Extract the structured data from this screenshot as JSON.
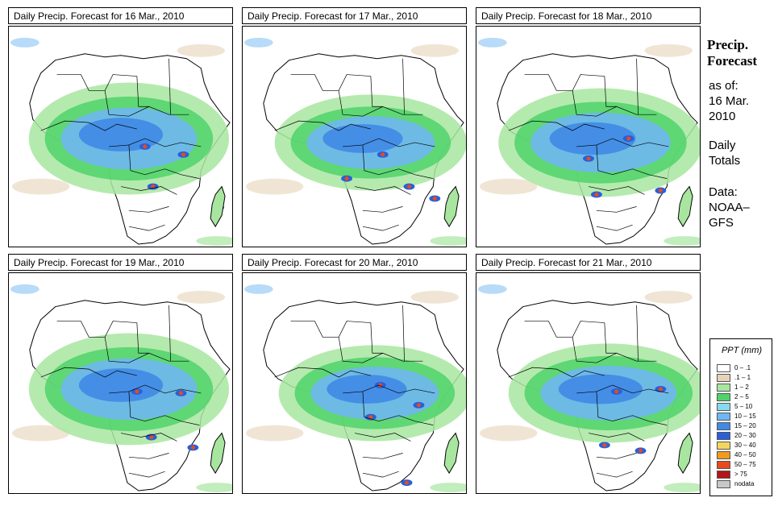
{
  "panels": [
    {
      "title": "Daily Precip. Forecast for  16 Mar., 2010"
    },
    {
      "title": "Daily Precip. Forecast for  17 Mar., 2010"
    },
    {
      "title": "Daily Precip. Forecast for  18 Mar., 2010"
    },
    {
      "title": "Daily Precip. Forecast for  19 Mar., 2010"
    },
    {
      "title": "Daily Precip. Forecast for  20 Mar., 2010"
    },
    {
      "title": "Daily Precip. Forecast for  21 Mar., 2010"
    }
  ],
  "sidebar": {
    "title_line1": "Precip.",
    "title_line2": "Forecast",
    "asof_line1": "as of:",
    "asof_line2": "16 Mar.",
    "asof_line3": "2010",
    "totals_line1": "Daily",
    "totals_line2": "Totals",
    "data_line1": "Data:",
    "data_line2": "NOAA–",
    "data_line3": "GFS"
  },
  "legend": {
    "title": "PPT (mm)",
    "items": [
      {
        "label": "0 – .1",
        "color": "#ffffff"
      },
      {
        "label": ".1 – 1",
        "color": "#e6d3b8"
      },
      {
        "label": "1 – 2",
        "color": "#a8e6a0"
      },
      {
        "label": "2 – 5",
        "color": "#4fd36a"
      },
      {
        "label": "5 – 10",
        "color": "#86d9ef"
      },
      {
        "label": "10 – 15",
        "color": "#6fb7f2"
      },
      {
        "label": "15 – 20",
        "color": "#3f8ae6"
      },
      {
        "label": "20 – 30",
        "color": "#2a5fd8"
      },
      {
        "label": "30 – 40",
        "color": "#f3d660"
      },
      {
        "label": "40 – 50",
        "color": "#f29a1d"
      },
      {
        "label": "50 – 75",
        "color": "#e84a1d"
      },
      {
        "label": "> 75",
        "color": "#b3151a"
      },
      {
        "label": "nodata",
        "color": "#c8c8c8"
      }
    ]
  }
}
